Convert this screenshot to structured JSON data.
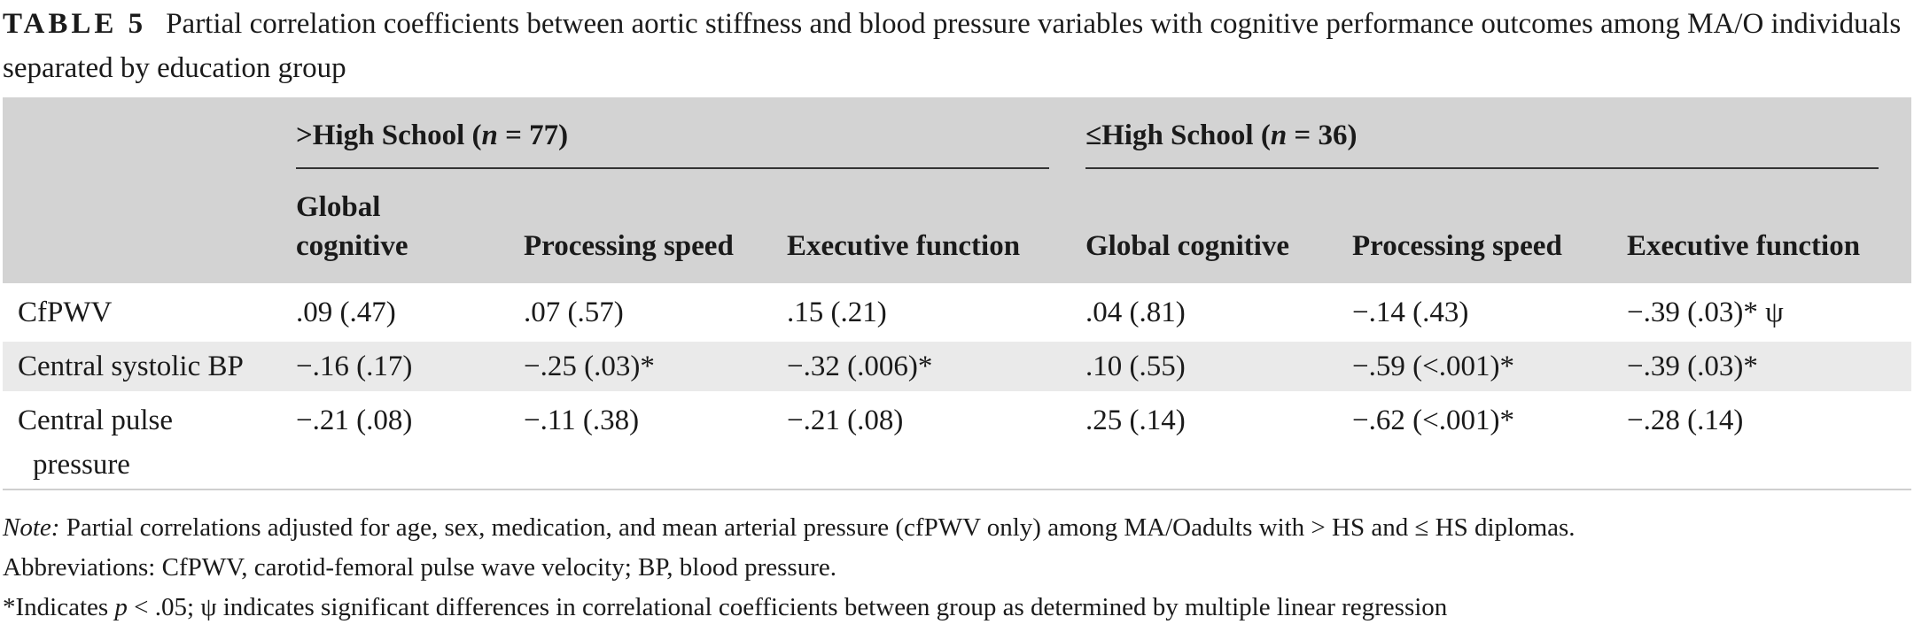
{
  "caption": {
    "label": "TABLE 5",
    "text": "Partial correlation coefficients between aortic stiffness and blood pressure variables with cognitive performance outcomes among MA/O individuals separated by education group"
  },
  "groups": [
    {
      "prefix": ">High School (",
      "n_var": "n",
      "suffix": " = 77)"
    },
    {
      "prefix": "≤High School (",
      "n_var": "n",
      "suffix": " = 36)"
    }
  ],
  "columns": [
    [
      "Global",
      "cognitive"
    ],
    [
      "Processing speed"
    ],
    [
      "Executive function"
    ],
    [
      "Global cognitive"
    ],
    [
      "Processing speed"
    ],
    [
      "Executive function"
    ]
  ],
  "rows": [
    {
      "label": [
        "CfPWV"
      ],
      "cells": [
        ".09 (.47)",
        ".07 (.57)",
        ".15 (.21)",
        ".04 (.81)",
        "−.14 (.43)",
        "−.39 (.03)* ψ"
      ]
    },
    {
      "label": [
        "Central systolic BP"
      ],
      "cells": [
        "−.16 (.17)",
        "−.25 (.03)*",
        "−.32 (.006)*",
        ".10 (.55)",
        "−.59 (<.001)*",
        "−.39 (.03)*"
      ]
    },
    {
      "label": [
        "Central pulse",
        "pressure"
      ],
      "cells": [
        "−.21 (.08)",
        "−.11 (.38)",
        "−.21 (.08)",
        ".25 (.14)",
        "−.62 (<.001)*",
        "−.28 (.14)"
      ]
    }
  ],
  "notes": {
    "note_label": "Note:",
    "note_text": " Partial correlations adjusted for age, sex, medication, and mean arterial pressure (cfPWV only) among MA/Oadults with > HS and ≤ HS diplomas.",
    "abbreviations": "Abbreviations: CfPWV, carotid-femoral pulse wave velocity; BP, blood pressure.",
    "sig_prefix": "*Indicates ",
    "sig_var": "p",
    "sig_suffix": " < .05; ψ indicates significant differences in correlational coefficients between group as determined by multiple linear regression"
  },
  "colors": {
    "header_bg": "#d3d3d3",
    "alt_row_bg": "#eaeaea",
    "text": "#1a1a1a"
  }
}
